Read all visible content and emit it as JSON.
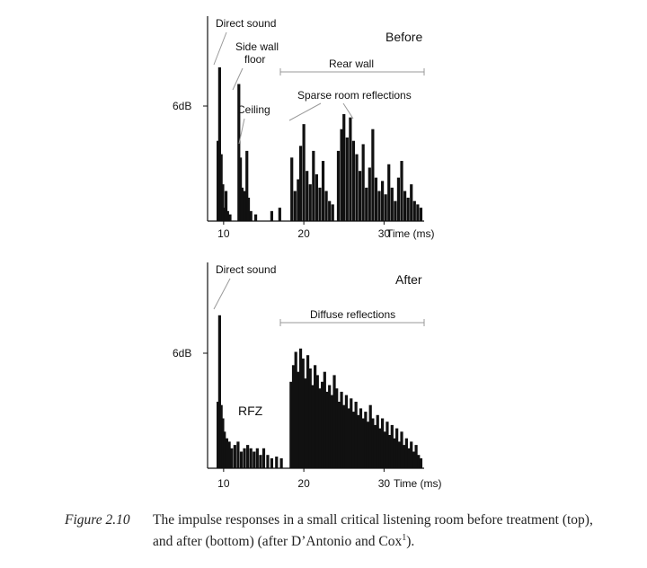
{
  "chart_data": [
    {
      "type": "bar",
      "title": "Before",
      "xlabel": "Time (ms)",
      "ylabel": "6dB",
      "xlim": [
        8,
        35
      ],
      "ylim": [
        0,
        100
      ],
      "x_ticks": [
        10,
        20,
        30
      ],
      "x_tick_labels": [
        "10",
        "20",
        "30"
      ],
      "x_axis_label_suffix": "Time (ms)",
      "values": [
        [
          9.3,
          48
        ],
        [
          9.5,
          92
        ],
        [
          9.7,
          40
        ],
        [
          9.9,
          22
        ],
        [
          10.1,
          8
        ],
        [
          10.3,
          18
        ],
        [
          10.5,
          6
        ],
        [
          10.8,
          4
        ],
        [
          11.9,
          82
        ],
        [
          12.1,
          38
        ],
        [
          12.3,
          20
        ],
        [
          12.6,
          18
        ],
        [
          12.9,
          42
        ],
        [
          13.1,
          14
        ],
        [
          13.4,
          6
        ],
        [
          14.0,
          4
        ],
        [
          16.0,
          6
        ],
        [
          17.0,
          8
        ],
        [
          18.5,
          38
        ],
        [
          18.9,
          18
        ],
        [
          19.3,
          25
        ],
        [
          19.6,
          45
        ],
        [
          20.0,
          58
        ],
        [
          20.4,
          30
        ],
        [
          20.8,
          22
        ],
        [
          21.2,
          42
        ],
        [
          21.6,
          28
        ],
        [
          22.0,
          20
        ],
        [
          22.4,
          36
        ],
        [
          22.8,
          18
        ],
        [
          23.2,
          12
        ],
        [
          23.6,
          10
        ],
        [
          24.3,
          42
        ],
        [
          24.7,
          55
        ],
        [
          25.0,
          64
        ],
        [
          25.4,
          50
        ],
        [
          25.8,
          62
        ],
        [
          26.2,
          48
        ],
        [
          26.6,
          40
        ],
        [
          27.0,
          30
        ],
        [
          27.4,
          46
        ],
        [
          27.8,
          20
        ],
        [
          28.2,
          32
        ],
        [
          28.6,
          55
        ],
        [
          29.0,
          26
        ],
        [
          29.4,
          18
        ],
        [
          29.8,
          24
        ],
        [
          30.2,
          16
        ],
        [
          30.6,
          34
        ],
        [
          31.0,
          20
        ],
        [
          31.4,
          12
        ],
        [
          31.8,
          26
        ],
        [
          32.2,
          36
        ],
        [
          32.6,
          18
        ],
        [
          33.0,
          14
        ],
        [
          33.4,
          22
        ],
        [
          33.8,
          12
        ],
        [
          34.2,
          10
        ],
        [
          34.6,
          8
        ]
      ],
      "annotations": [
        {
          "text": "Direct sound"
        },
        {
          "text": "Side wall"
        },
        {
          "text": "floor"
        },
        {
          "text": "Ceiling"
        },
        {
          "text": "Rear wall"
        },
        {
          "text": "Sparse room reflections"
        }
      ]
    },
    {
      "type": "bar",
      "title": "After",
      "xlabel": "Time (ms)",
      "ylabel": "6dB",
      "xlim": [
        8,
        35
      ],
      "ylim": [
        0,
        100
      ],
      "x_ticks": [
        10,
        20,
        30
      ],
      "x_tick_labels": [
        "10",
        "20",
        "30"
      ],
      "values": [
        [
          9.3,
          40
        ],
        [
          9.5,
          92
        ],
        [
          9.7,
          38
        ],
        [
          9.9,
          30
        ],
        [
          10.1,
          22
        ],
        [
          10.4,
          18
        ],
        [
          10.7,
          16
        ],
        [
          11.0,
          12
        ],
        [
          11.4,
          14
        ],
        [
          11.8,
          16
        ],
        [
          12.2,
          10
        ],
        [
          12.6,
          12
        ],
        [
          13.0,
          14
        ],
        [
          13.4,
          12
        ],
        [
          13.8,
          10
        ],
        [
          14.2,
          12
        ],
        [
          14.6,
          8
        ],
        [
          15.0,
          12
        ],
        [
          15.5,
          8
        ],
        [
          16.0,
          6
        ],
        [
          16.6,
          7
        ],
        [
          17.2,
          6
        ],
        [
          18.4,
          52
        ],
        [
          18.7,
          62
        ],
        [
          19.0,
          70
        ],
        [
          19.3,
          58
        ],
        [
          19.6,
          72
        ],
        [
          19.9,
          66
        ],
        [
          20.2,
          54
        ],
        [
          20.5,
          68
        ],
        [
          20.8,
          60
        ],
        [
          21.1,
          50
        ],
        [
          21.4,
          62
        ],
        [
          21.7,
          56
        ],
        [
          22.0,
          48
        ],
        [
          22.3,
          52
        ],
        [
          22.6,
          58
        ],
        [
          22.9,
          46
        ],
        [
          23.2,
          50
        ],
        [
          23.5,
          44
        ],
        [
          23.8,
          56
        ],
        [
          24.1,
          48
        ],
        [
          24.4,
          40
        ],
        [
          24.7,
          46
        ],
        [
          25.0,
          38
        ],
        [
          25.3,
          44
        ],
        [
          25.6,
          36
        ],
        [
          25.9,
          42
        ],
        [
          26.2,
          34
        ],
        [
          26.5,
          40
        ],
        [
          26.8,
          32
        ],
        [
          27.1,
          36
        ],
        [
          27.4,
          30
        ],
        [
          27.7,
          34
        ],
        [
          28.0,
          28
        ],
        [
          28.3,
          38
        ],
        [
          28.6,
          30
        ],
        [
          28.9,
          26
        ],
        [
          29.2,
          32
        ],
        [
          29.5,
          24
        ],
        [
          29.8,
          30
        ],
        [
          30.1,
          22
        ],
        [
          30.4,
          28
        ],
        [
          30.7,
          20
        ],
        [
          31.0,
          26
        ],
        [
          31.3,
          18
        ],
        [
          31.6,
          24
        ],
        [
          31.9,
          16
        ],
        [
          32.2,
          22
        ],
        [
          32.5,
          14
        ],
        [
          32.8,
          18
        ],
        [
          33.1,
          12
        ],
        [
          33.4,
          16
        ],
        [
          33.7,
          10
        ],
        [
          34.0,
          14
        ],
        [
          34.3,
          8
        ],
        [
          34.6,
          6
        ]
      ],
      "annotations": [
        {
          "text": "Direct sound"
        },
        {
          "text": "Diffuse reflections"
        },
        {
          "text": "RFZ"
        }
      ]
    }
  ],
  "caption": {
    "label": "Figure 2.10",
    "line1": "The impulse responses in a small critical listening room before treatment (top),",
    "line2": "and after (bottom) (after D’Antonio and Cox",
    "superscript": "1",
    "line2_end": ")."
  }
}
